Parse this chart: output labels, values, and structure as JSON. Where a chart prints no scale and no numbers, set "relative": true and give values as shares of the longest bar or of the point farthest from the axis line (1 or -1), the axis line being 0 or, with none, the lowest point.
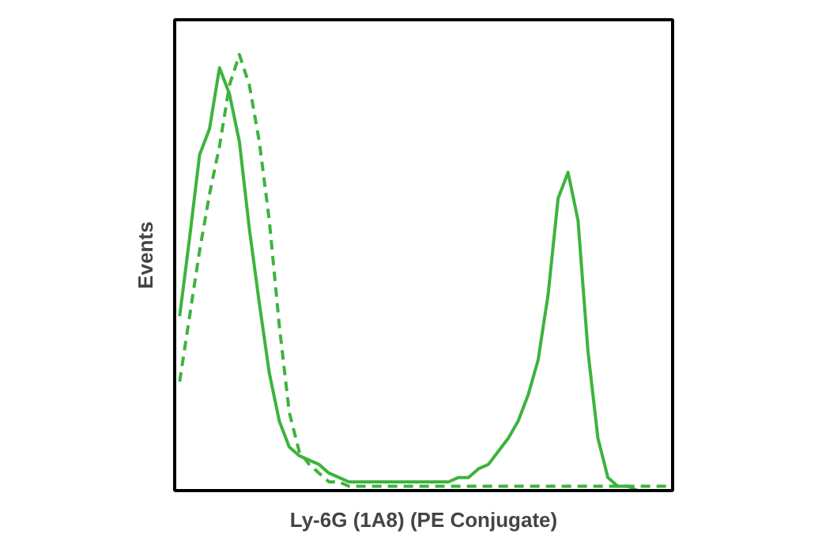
{
  "chart_data": {
    "type": "line",
    "relative": true,
    "xlabel": "Ly-6G (1A8) (PE Conjugate)",
    "ylabel": "Events",
    "grid": false,
    "categories": [
      null,
      null,
      null,
      null,
      null,
      null,
      null,
      null,
      null,
      null,
      null,
      null,
      null,
      null,
      null,
      null,
      null,
      null,
      null,
      null,
      null,
      null,
      null,
      null,
      null,
      null,
      null,
      null,
      null,
      null,
      null,
      null,
      null,
      null,
      null,
      null,
      null,
      null,
      null,
      null,
      null,
      null,
      null,
      null,
      null,
      null,
      null,
      null,
      null,
      null
    ],
    "series": [
      {
        "color": "#3cb43c",
        "line_style": "solid",
        "values": [
          0.4,
          0.58,
          0.77,
          0.83,
          0.97,
          0.91,
          0.8,
          0.6,
          0.43,
          0.27,
          0.16,
          0.1,
          0.08,
          0.07,
          0.06,
          0.04,
          0.03,
          0.02,
          0.02,
          0.02,
          0.02,
          0.02,
          0.02,
          0.02,
          0.02,
          0.02,
          0.02,
          0.02,
          0.03,
          0.03,
          0.05,
          0.06,
          0.09,
          0.12,
          0.16,
          0.22,
          0.3,
          0.45,
          0.67,
          0.73,
          0.62,
          0.32,
          0.12,
          0.03,
          0.01,
          0.01,
          0,
          0,
          0,
          0
        ]
      },
      {
        "color": "#3cb43c",
        "line_style": "dashed",
        "values": [
          0.25,
          0.4,
          0.55,
          0.68,
          0.79,
          0.93,
          1.0,
          0.93,
          0.8,
          0.62,
          0.38,
          0.18,
          0.09,
          0.06,
          0.04,
          0.02,
          0.02,
          0.01,
          0.01,
          0.01,
          0.01,
          0.01,
          0.01,
          0.01,
          0.01,
          0.01,
          0.01,
          0.01,
          0.01,
          0.01,
          0.01,
          0.01,
          0.01,
          0.01,
          0.01,
          0.01,
          0.01,
          0.01,
          0.01,
          0.01,
          0.01,
          0.01,
          0.01,
          0.01,
          0.01,
          0.01,
          0.01,
          0.01,
          0.01,
          0.01
        ]
      }
    ]
  }
}
